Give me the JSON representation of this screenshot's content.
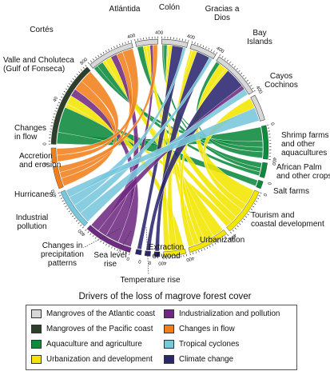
{
  "chart_data": {
    "type": "chord",
    "title": "Drivers of the loss of magrove forest cover",
    "regions": [
      {
        "id": "valle",
        "label": [
          "Valle and Choluteca",
          "(Gulf of Fonseca)"
        ],
        "group": "pacific",
        "max": 80
      },
      {
        "id": "cortes",
        "label": [
          "Cortés"
        ],
        "group": "atlantic",
        "max": 40
      },
      {
        "id": "atlantida",
        "label": [
          "Atlántida"
        ],
        "group": "atlantic",
        "max": 40
      },
      {
        "id": "colon",
        "label": [
          "Colón"
        ],
        "group": "atlantic",
        "max": 40
      },
      {
        "id": "gracias",
        "label": [
          "Gracias a",
          "Dios"
        ],
        "group": "atlantic",
        "max": 40
      },
      {
        "id": "bay",
        "label": [
          "Bay",
          "Islands"
        ],
        "group": "atlantic",
        "max": 40
      },
      {
        "id": "cayos",
        "label": [
          "Cayos",
          "Cochinos"
        ],
        "group": "atlantic",
        "max": 0
      }
    ],
    "drivers": [
      {
        "id": "shrimp",
        "label": [
          "Shrimp farms",
          "and other",
          "aquacultures"
        ],
        "category": "aquaculture",
        "max": 40
      },
      {
        "id": "palm",
        "label": [
          "African Palm",
          "and other crops"
        ],
        "category": "aquaculture",
        "max": 0
      },
      {
        "id": "salt",
        "label": [
          "Salt farms"
        ],
        "category": "aquaculture",
        "max": 0
      },
      {
        "id": "tourism",
        "label": [
          "Tourism and",
          "coastal development"
        ],
        "category": "urbanization",
        "max": 40
      },
      {
        "id": "urban",
        "label": [
          "Urbanization"
        ],
        "category": "urbanization",
        "max": 40
      },
      {
        "id": "wood",
        "label": [
          "Extraction",
          "of wood"
        ],
        "category": "urbanization",
        "max": 40
      },
      {
        "id": "temp",
        "label": [
          "Temperature rise"
        ],
        "category": "climate",
        "max": 0
      },
      {
        "id": "sealevel",
        "label": [
          "Sea level",
          "rise"
        ],
        "category": "climate",
        "max": 0
      },
      {
        "id": "precip",
        "label": [
          "Changes in",
          "precipitation",
          "patterns"
        ],
        "category": "climate",
        "max": 0
      },
      {
        "id": "industrial",
        "label": [
          "Industrial",
          "pollution"
        ],
        "category": "industrialization",
        "max": 40
      },
      {
        "id": "hurricanes",
        "label": [
          "Hurricanes"
        ],
        "category": "cyclones",
        "max": 40
      },
      {
        "id": "accretion",
        "label": [
          "Accretion",
          "and erosion"
        ],
        "category": "flow",
        "max": 0
      },
      {
        "id": "flow",
        "label": [
          "Changes",
          "in flow"
        ],
        "category": "flow",
        "max": 0
      }
    ],
    "colors": {
      "atlantic": "#d8d8d8",
      "pacific": "#2b3f2b",
      "aquaculture": "#0d8a3c",
      "urbanization": "#f2e600",
      "industrialization": "#6e2a82",
      "flow": "#f07f1b",
      "cyclones": "#78c7dc",
      "climate": "#2a2670"
    }
  },
  "legend": {
    "title": "Drivers of the loss of magrove forest cover",
    "items": [
      {
        "label": "Mangroves of the Atlantic coast",
        "color": "#d8d8d8"
      },
      {
        "label": "Industrialization and pollution",
        "color": "#6e2a82"
      },
      {
        "label": "Mangroves of the Pacific coast",
        "color": "#2b3f2b"
      },
      {
        "label": "Changes in flow",
        "color": "#f07f1b"
      },
      {
        "label": "Aquaculture and agriculture",
        "color": "#0d8a3c"
      },
      {
        "label": "Tropical cyclones",
        "color": "#78c7dc"
      },
      {
        "label": "Urbanization and development",
        "color": "#f2e600"
      },
      {
        "label": "Climate change",
        "color": "#2a2670"
      }
    ]
  }
}
